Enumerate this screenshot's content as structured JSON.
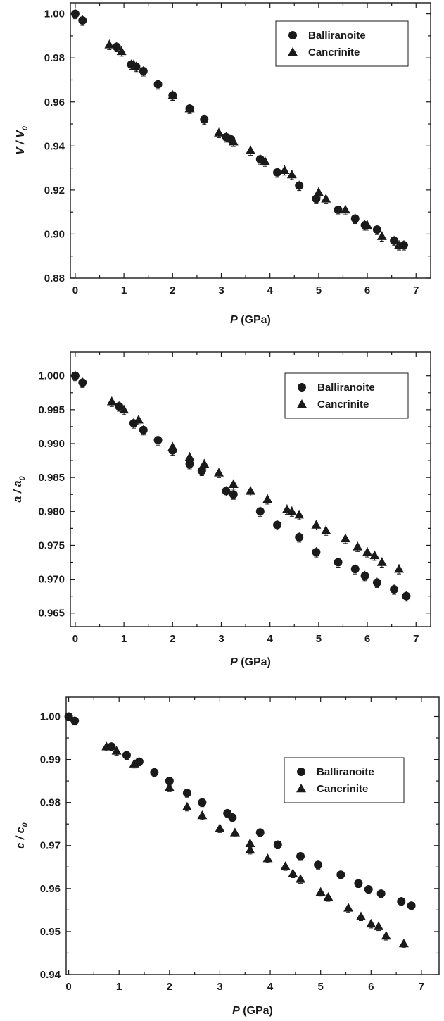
{
  "chart_data": [
    {
      "type": "scatter",
      "ylabel_main": "V / V",
      "ylabel_sub": "0",
      "xlabel_main": "P",
      "xlabel_unit": " (GPa)",
      "xlim": [
        -0.1,
        7.3
      ],
      "ylim": [
        0.88,
        1.005
      ],
      "xticks": [
        0,
        1,
        2,
        3,
        4,
        5,
        6,
        7
      ],
      "yticks": [
        0.88,
        0.9,
        0.92,
        0.94,
        0.96,
        0.98,
        1.0
      ],
      "ytick_labels": [
        "0.88",
        "0.90",
        "0.92",
        "0.94",
        "0.96",
        "0.98",
        "1.00"
      ],
      "legend_position": "top-right",
      "series": [
        {
          "name": "Balliranoite",
          "marker": "circle",
          "points": [
            [
              0.0,
              1.0
            ],
            [
              0.15,
              0.997
            ],
            [
              0.85,
              0.985
            ],
            [
              1.15,
              0.977
            ],
            [
              1.25,
              0.976
            ],
            [
              1.4,
              0.974
            ],
            [
              1.7,
              0.968
            ],
            [
              2.0,
              0.963
            ],
            [
              2.35,
              0.957
            ],
            [
              2.65,
              0.952
            ],
            [
              3.1,
              0.944
            ],
            [
              3.2,
              0.943
            ],
            [
              3.8,
              0.934
            ],
            [
              4.15,
              0.928
            ],
            [
              4.6,
              0.922
            ],
            [
              4.95,
              0.916
            ],
            [
              5.4,
              0.911
            ],
            [
              5.75,
              0.907
            ],
            [
              5.95,
              0.904
            ],
            [
              6.2,
              0.902
            ],
            [
              6.55,
              0.897
            ],
            [
              6.75,
              0.895
            ]
          ]
        },
        {
          "name": "Cancrinite",
          "marker": "triangle",
          "points": [
            [
              0.7,
              0.986
            ],
            [
              0.95,
              0.983
            ],
            [
              1.2,
              0.977
            ],
            [
              2.0,
              0.963
            ],
            [
              2.35,
              0.957
            ],
            [
              2.95,
              0.946
            ],
            [
              3.25,
              0.942
            ],
            [
              3.6,
              0.938
            ],
            [
              3.9,
              0.933
            ],
            [
              4.3,
              0.929
            ],
            [
              4.45,
              0.927
            ],
            [
              5.0,
              0.919
            ],
            [
              5.15,
              0.916
            ],
            [
              5.55,
              0.911
            ],
            [
              6.0,
              0.904
            ],
            [
              6.3,
              0.899
            ],
            [
              6.65,
              0.895
            ]
          ]
        }
      ]
    },
    {
      "type": "scatter",
      "ylabel_main": "a / a",
      "ylabel_sub": "0",
      "xlabel_main": "P",
      "xlabel_unit": " (GPa)",
      "xlim": [
        -0.1,
        7.3
      ],
      "ylim": [
        0.963,
        1.0035
      ],
      "xticks": [
        0,
        1,
        2,
        3,
        4,
        5,
        6,
        7
      ],
      "yticks": [
        0.965,
        0.97,
        0.975,
        0.98,
        0.985,
        0.99,
        0.995,
        1.0
      ],
      "ytick_labels": [
        "0.965",
        "0.970",
        "0.975",
        "0.980",
        "0.985",
        "0.990",
        "0.995",
        "1.000"
      ],
      "legend_position": "top-right",
      "series": [
        {
          "name": "Balliranoite",
          "marker": "circle",
          "points": [
            [
              0.0,
              1.0
            ],
            [
              0.15,
              0.999
            ],
            [
              0.9,
              0.9955
            ],
            [
              1.2,
              0.993
            ],
            [
              1.4,
              0.992
            ],
            [
              1.7,
              0.9905
            ],
            [
              2.0,
              0.989
            ],
            [
              2.35,
              0.987
            ],
            [
              2.6,
              0.986
            ],
            [
              3.1,
              0.983
            ],
            [
              3.25,
              0.9825
            ],
            [
              3.8,
              0.98
            ],
            [
              4.15,
              0.978
            ],
            [
              4.6,
              0.9762
            ],
            [
              4.95,
              0.974
            ],
            [
              5.4,
              0.9725
            ],
            [
              5.75,
              0.9715
            ],
            [
              5.95,
              0.9705
            ],
            [
              6.2,
              0.9695
            ],
            [
              6.55,
              0.9685
            ],
            [
              6.8,
              0.9675
            ]
          ]
        },
        {
          "name": "Cancrinite",
          "marker": "triangle",
          "points": [
            [
              0.75,
              0.9962
            ],
            [
              1.0,
              0.995
            ],
            [
              1.3,
              0.9935
            ],
            [
              2.0,
              0.9895
            ],
            [
              2.35,
              0.988
            ],
            [
              2.65,
              0.987
            ],
            [
              2.95,
              0.9857
            ],
            [
              3.25,
              0.984
            ],
            [
              3.6,
              0.983
            ],
            [
              3.95,
              0.9818
            ],
            [
              4.35,
              0.9803
            ],
            [
              4.45,
              0.98
            ],
            [
              4.6,
              0.9795
            ],
            [
              4.95,
              0.978
            ],
            [
              5.15,
              0.9772
            ],
            [
              5.55,
              0.976
            ],
            [
              5.8,
              0.9748
            ],
            [
              6.0,
              0.974
            ],
            [
              6.15,
              0.9735
            ],
            [
              6.3,
              0.9725
            ],
            [
              6.65,
              0.9715
            ]
          ]
        }
      ]
    },
    {
      "type": "scatter",
      "ylabel_main": "c / c",
      "ylabel_sub": "0",
      "xlabel_main": "P",
      "xlabel_unit": " (GPa)",
      "xlim": [
        -0.05,
        7.35
      ],
      "ylim": [
        0.94,
        1.0045
      ],
      "xticks": [
        0,
        1,
        2,
        3,
        4,
        5,
        6,
        7
      ],
      "yticks": [
        0.94,
        0.95,
        0.96,
        0.97,
        0.98,
        0.99,
        1.0
      ],
      "ytick_labels": [
        "0.94",
        "0.95",
        "0.96",
        "0.97",
        "0.98",
        "0.99",
        "1.00"
      ],
      "legend_position": "top-right",
      "series": [
        {
          "name": "Balliranoite",
          "marker": "circle",
          "points": [
            [
              0.0,
              1.0
            ],
            [
              0.12,
              0.999
            ],
            [
              0.85,
              0.993
            ],
            [
              1.15,
              0.991
            ],
            [
              1.4,
              0.9895
            ],
            [
              1.7,
              0.987
            ],
            [
              2.0,
              0.985
            ],
            [
              2.35,
              0.9822
            ],
            [
              2.65,
              0.98
            ],
            [
              3.15,
              0.9775
            ],
            [
              3.25,
              0.9765
            ],
            [
              3.8,
              0.973
            ],
            [
              4.15,
              0.9702
            ],
            [
              4.6,
              0.9675
            ],
            [
              4.95,
              0.9655
            ],
            [
              5.4,
              0.9632
            ],
            [
              5.75,
              0.9612
            ],
            [
              5.95,
              0.9598
            ],
            [
              6.2,
              0.9588
            ],
            [
              6.6,
              0.957
            ],
            [
              6.8,
              0.956
            ]
          ]
        },
        {
          "name": "Cancrinite",
          "marker": "triangle",
          "points": [
            [
              0.75,
              0.993
            ],
            [
              0.95,
              0.992
            ],
            [
              1.3,
              0.989
            ],
            [
              2.0,
              0.9835
            ],
            [
              2.35,
              0.979
            ],
            [
              2.65,
              0.977
            ],
            [
              3.0,
              0.974
            ],
            [
              3.3,
              0.973
            ],
            [
              3.6,
              0.9705
            ],
            [
              3.6,
              0.969
            ],
            [
              3.95,
              0.967
            ],
            [
              4.3,
              0.9652
            ],
            [
              4.45,
              0.9635
            ],
            [
              4.6,
              0.9622
            ],
            [
              5.0,
              0.9592
            ],
            [
              5.15,
              0.958
            ],
            [
              5.55,
              0.9555
            ],
            [
              5.8,
              0.9535
            ],
            [
              6.0,
              0.9518
            ],
            [
              6.15,
              0.9512
            ],
            [
              6.3,
              0.949
            ],
            [
              6.65,
              0.9472
            ]
          ]
        }
      ]
    }
  ]
}
